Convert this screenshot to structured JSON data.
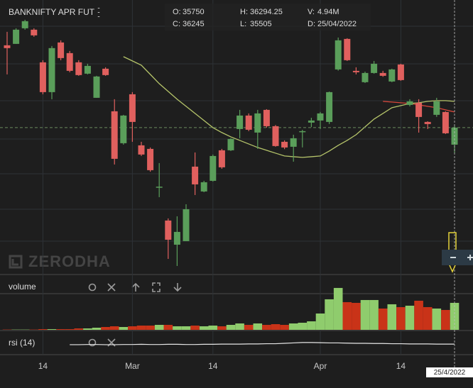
{
  "header": {
    "symbol": "BANKNIFTY APR FUT",
    "stats": [
      {
        "label": "O:",
        "value": "35750"
      },
      {
        "label": "H:",
        "value": "36294.25"
      },
      {
        "label": "V:",
        "value": "4.94M"
      },
      {
        "label": "C:",
        "value": "36245"
      },
      {
        "label": "L:",
        "value": "35505"
      },
      {
        "label": "D:",
        "value": "25/04/2022"
      }
    ]
  },
  "watermark": "ZERODHA",
  "chart_data": {
    "type": "candlestick",
    "categories": [
      null,
      null,
      null,
      null,
      "14",
      null,
      null,
      null,
      null,
      null,
      null,
      null,
      null,
      null,
      "Mar",
      null,
      null,
      null,
      null,
      null,
      null,
      null,
      null,
      "14",
      null,
      null,
      null,
      null,
      null,
      null,
      null,
      null,
      null,
      null,
      null,
      "Apr",
      null,
      null,
      null,
      null,
      null,
      null,
      null,
      null,
      "14",
      null,
      null,
      null,
      null,
      null,
      null
    ],
    "open": [
      38635,
      38676,
      39129,
      39088,
      38140,
      37275,
      38717,
      38408,
      38140,
      37811,
      37110,
      37955,
      36719,
      35792,
      37213,
      35730,
      35627,
      34500,
      33547,
      32846,
      32949,
      35112,
      34391,
      34700,
      35586,
      35586,
      36204,
      36595,
      36101,
      36760,
      36286,
      35833,
      35689,
      36120,
      36390,
      36451,
      36410,
      37934,
      38820,
      37893,
      37564,
      37831,
      37831,
      37584,
      38078,
      36904,
      36966,
      36410,
      36616,
      36698,
      35750
    ],
    "high": [
      39026,
      39129,
      39376,
      39129,
      38202,
      38614,
      38779,
      38470,
      38202,
      38099,
      37749,
      37996,
      37069,
      36616,
      37275,
      35833,
      35668,
      35215,
      33608,
      33670,
      34020,
      35524,
      34700,
      35463,
      35627,
      35936,
      36760,
      36657,
      36760,
      36780,
      36320,
      35875,
      36039,
      36180,
      36530,
      36700,
      37290,
      38860,
      38840,
      37996,
      37870,
      38180,
      37893,
      37955,
      38099,
      37069,
      37069,
      36430,
      37110,
      36719,
      36294.25
    ],
    "low": [
      37790,
      38676,
      39088,
      38882,
      37213,
      37069,
      38202,
      37852,
      37749,
      37790,
      37110,
      37749,
      35174,
      35751,
      35833,
      35421,
      34965,
      34226,
      32434,
      32228,
      32949,
      34288,
      34370,
      34680,
      35050,
      35565,
      35936,
      36142,
      35627,
      36245,
      35690,
      35620,
      35256,
      35670,
      36260,
      36204,
      36350,
      37900,
      38180,
      37790,
      37540,
      37811,
      37720,
      37564,
      37605,
      36860,
      36100,
      36204,
      36557,
      36060,
      35505
    ],
    "close": [
      38553,
      39088,
      39335,
      38923,
      37275,
      38553,
      38264,
      37893,
      37770,
      38037,
      37729,
      37770,
      35339,
      36595,
      36410,
      35463,
      35009,
      34530,
      32990,
      33217,
      33876,
      34597,
      34659,
      35421,
      35092,
      35916,
      36595,
      36183,
      36657,
      36286,
      35710,
      35668,
      35936,
      36142,
      36451,
      36657,
      37275,
      38779,
      38202,
      37852,
      37831,
      38099,
      37749,
      37934,
      37625,
      37007,
      36554,
      36348,
      37007,
      36080,
      36245
    ],
    "ylim": [
      31980,
      39950
    ],
    "up_color": "#5a9e5a",
    "down_color": "#e0605e",
    "overlays": [
      {
        "color": "#b5c46a",
        "values": [
          null,
          null,
          null,
          null,
          null,
          null,
          null,
          null,
          null,
          null,
          null,
          null,
          null,
          38305,
          38181,
          38058,
          37790,
          37522,
          37296,
          37069,
          36863,
          36657,
          36451,
          36245,
          36101,
          35977,
          35874,
          35771,
          35668,
          35586,
          35503,
          35421,
          35400,
          35380,
          35400,
          35421,
          35565,
          35730,
          35874,
          36039,
          36266,
          36492,
          36657,
          36822,
          36884,
          36946,
          36966,
          37007,
          37028,
          37028,
          37007
        ]
      },
      {
        "color": "#d9463a",
        "values": [
          null,
          null,
          null,
          null,
          null,
          null,
          null,
          null,
          null,
          null,
          null,
          null,
          null,
          null,
          null,
          null,
          null,
          null,
          null,
          null,
          null,
          null,
          null,
          null,
          null,
          null,
          null,
          null,
          null,
          null,
          null,
          null,
          null,
          null,
          null,
          null,
          null,
          null,
          null,
          null,
          null,
          null,
          37007,
          36987,
          36966,
          36946,
          36904,
          36863,
          36822,
          36760,
          36698
        ]
      }
    ],
    "volume": {
      "label": "volume",
      "ylim": [
        0,
        10
      ],
      "up_color": "#8fcc6d",
      "down_color": "#c93318",
      "values": [
        0.05,
        0.05,
        0.05,
        0.05,
        0.13,
        0.13,
        0.13,
        0.13,
        0.26,
        0.26,
        0.39,
        0.52,
        0.65,
        0.52,
        0.65,
        0.78,
        0.78,
        0.91,
        0.91,
        0.65,
        0.65,
        0.78,
        0.65,
        0.78,
        0.65,
        0.91,
        1.17,
        0.91,
        1.17,
        0.91,
        1.04,
        0.91,
        1.17,
        1.3,
        1.56,
        2.99,
        5.59,
        7.67,
        5.07,
        4.94,
        5.46,
        5.46,
        3.9,
        4.68,
        4.16,
        4.42,
        5.33,
        4.16,
        3.9,
        3.64,
        4.94
      ]
    },
    "rsi": {
      "label": "rsi (14)",
      "ylim": [
        0,
        100
      ],
      "color": "#e6e6e6",
      "values": [
        null,
        null,
        null,
        null,
        null,
        null,
        null,
        43,
        43,
        44,
        44,
        43,
        43,
        44,
        44,
        45,
        44,
        44,
        45,
        45,
        44,
        44,
        45,
        45,
        46,
        46,
        46,
        47,
        47,
        48,
        48,
        50,
        52,
        54,
        54,
        53,
        52,
        52,
        51,
        50,
        50,
        49,
        49,
        48,
        48,
        47,
        47,
        47,
        46,
        46,
        46
      ]
    },
    "crosshair_label": "25/4/2022"
  }
}
